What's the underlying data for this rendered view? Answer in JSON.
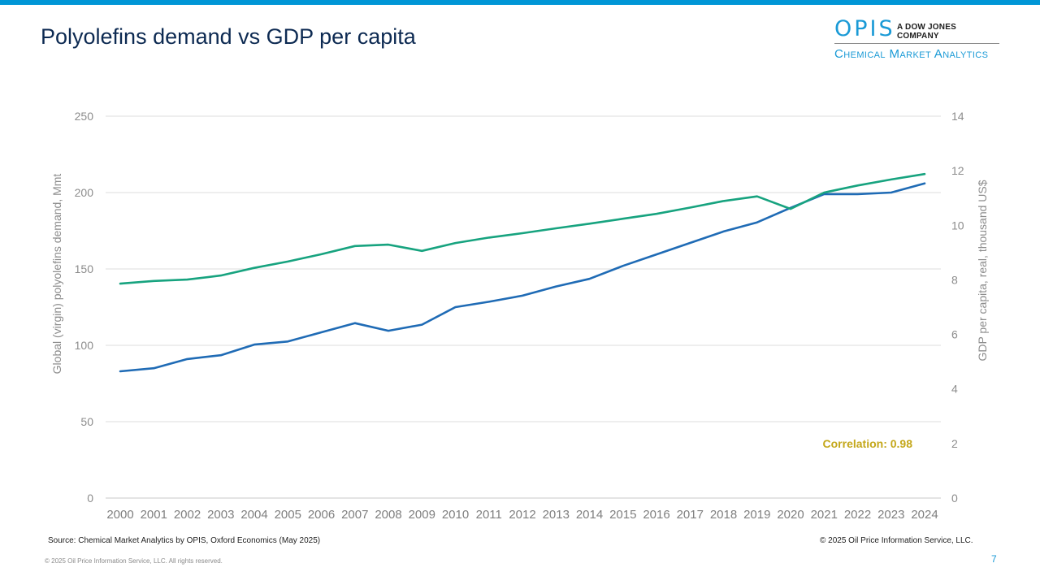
{
  "slide": {
    "title": "Polyolefins demand vs GDP per capita",
    "source": "Source: Chemical Market Analytics by OPIS, Oxford Economics (May 2025)",
    "copyright_right": "© 2025 Oil Price Information Service, LLC.",
    "copyright_bottom": "© 2025 Oil Price Information Service, LLC. All rights reserved.",
    "page_number": "7",
    "accent_color": "#0096d6"
  },
  "logo": {
    "brand": "OPIS",
    "tagline": "A DOW JONES COMPANY",
    "division": "Chemical Market Analytics"
  },
  "chart_data": {
    "type": "line",
    "title": "Polyolefins demand vs GDP per capita",
    "categories": [
      "2000",
      "2001",
      "2002",
      "2003",
      "2004",
      "2005",
      "2006",
      "2007",
      "2008",
      "2009",
      "2010",
      "2011",
      "2012",
      "2013",
      "2014",
      "2015",
      "2016",
      "2017",
      "2018",
      "2019",
      "2020",
      "2021",
      "2022",
      "2023",
      "2024"
    ],
    "ylabel_left": "Global (virgin) polyolefins demand, Mmt",
    "ylabel_right": "GDP per capita, real, thousand US$",
    "ylim_left": [
      0,
      250
    ],
    "ylim_right": [
      0,
      14
    ],
    "yticks_left": [
      0,
      50,
      100,
      150,
      200,
      250
    ],
    "yticks_right": [
      0,
      2,
      4,
      6,
      8,
      10,
      12,
      14
    ],
    "grid": true,
    "annotation": "Correlation: 0.98",
    "series": [
      {
        "name": "Polyolefins demand",
        "axis": "left",
        "color": "#1f6bb5",
        "values": [
          83,
          85,
          91,
          93.5,
          100.5,
          102.5,
          108.5,
          114.5,
          109.5,
          113.5,
          125,
          128.5,
          132.5,
          138.5,
          143.5,
          152,
          159.5,
          167,
          174.5,
          180.5,
          190,
          199,
          199,
          200,
          206
        ]
      },
      {
        "name": "GDP per capita",
        "axis": "right",
        "color": "#17a37f",
        "values": [
          7.86,
          7.96,
          8.01,
          8.16,
          8.44,
          8.67,
          8.94,
          9.24,
          9.29,
          9.06,
          9.35,
          9.55,
          9.71,
          9.89,
          10.06,
          10.24,
          10.42,
          10.65,
          10.89,
          11.06,
          10.6,
          11.2,
          11.46,
          11.68,
          11.88
        ]
      }
    ]
  }
}
